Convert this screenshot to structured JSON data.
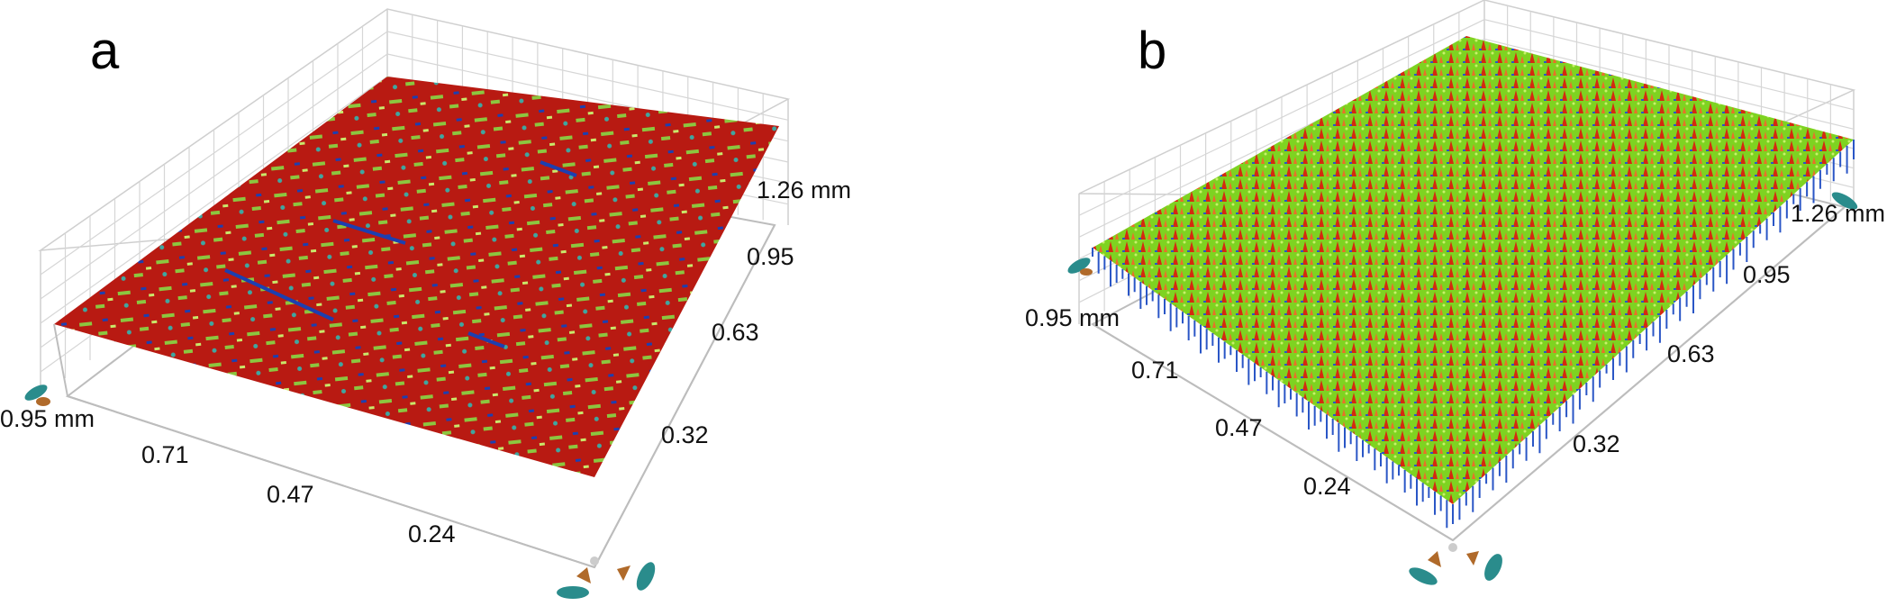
{
  "panels": [
    {
      "letter": "a",
      "axis_x_ticks": [
        "0.95 mm",
        "0.71",
        "0.47",
        "0.24"
      ],
      "axis_y_ticks": [
        "1.26 mm",
        "0.95",
        "0.63",
        "0.32"
      ],
      "surface_colors": {
        "base": "#b81a12",
        "mid": "#8cc63f",
        "low": "#1d3fb0"
      }
    },
    {
      "letter": "b",
      "axis_x_ticks": [
        "0.95 mm",
        "0.71",
        "0.47",
        "0.24"
      ],
      "axis_y_ticks": [
        "1.26 mm",
        "0.95",
        "0.63",
        "0.32"
      ],
      "surface_colors": {
        "base": "#7ed321",
        "peak": "#d42a10",
        "low": "#2a56c6"
      }
    }
  ],
  "colors": {
    "grid": "#c8c8c8",
    "nav_teal": "#2a8c8c",
    "nav_brown": "#b06a2a"
  }
}
